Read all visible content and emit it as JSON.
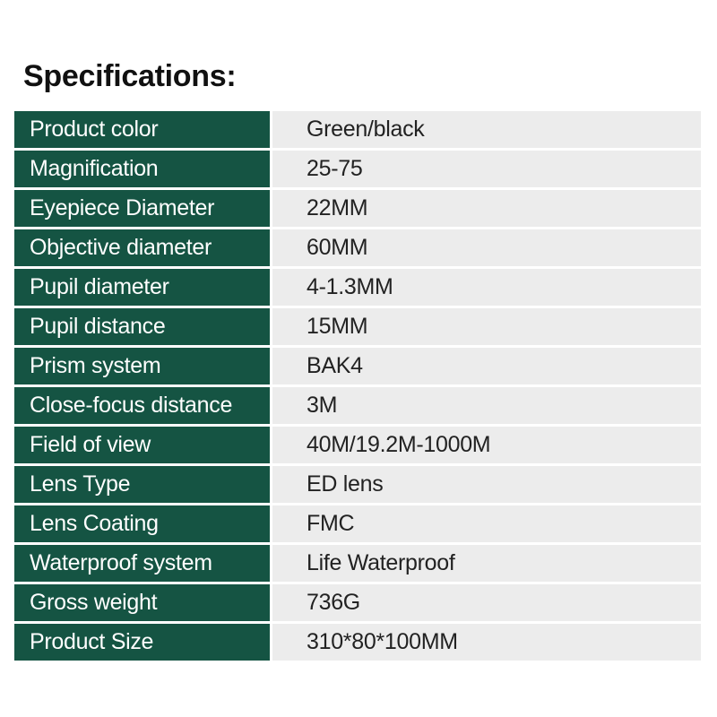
{
  "title": "Specifications:",
  "colors": {
    "label_bg": "#155443",
    "value_bg": "#ececec"
  },
  "specs": [
    {
      "label": "Product color",
      "value": "Green/black"
    },
    {
      "label": "Magnification",
      "value": "25-75"
    },
    {
      "label": "Eyepiece Diameter",
      "value": "22MM"
    },
    {
      "label": "Objective diameter",
      "value": "60MM"
    },
    {
      "label": "Pupil diameter",
      "value": "4-1.3MM"
    },
    {
      "label": "Pupil distance",
      "value": "15MM"
    },
    {
      "label": "Prism system",
      "value": "BAK4"
    },
    {
      "label": "Close-focus distance",
      "value": "3M"
    },
    {
      "label": "Field of view",
      "value": "40M/19.2M-1000M"
    },
    {
      "label": "Lens Type",
      "value": "ED lens"
    },
    {
      "label": "Lens Coating",
      "value": "FMC"
    },
    {
      "label": "Waterproof system",
      "value": "Life Waterproof"
    },
    {
      "label": "Gross weight",
      "value": "736G"
    },
    {
      "label": "Product Size",
      "value": "310*80*100MM"
    }
  ]
}
